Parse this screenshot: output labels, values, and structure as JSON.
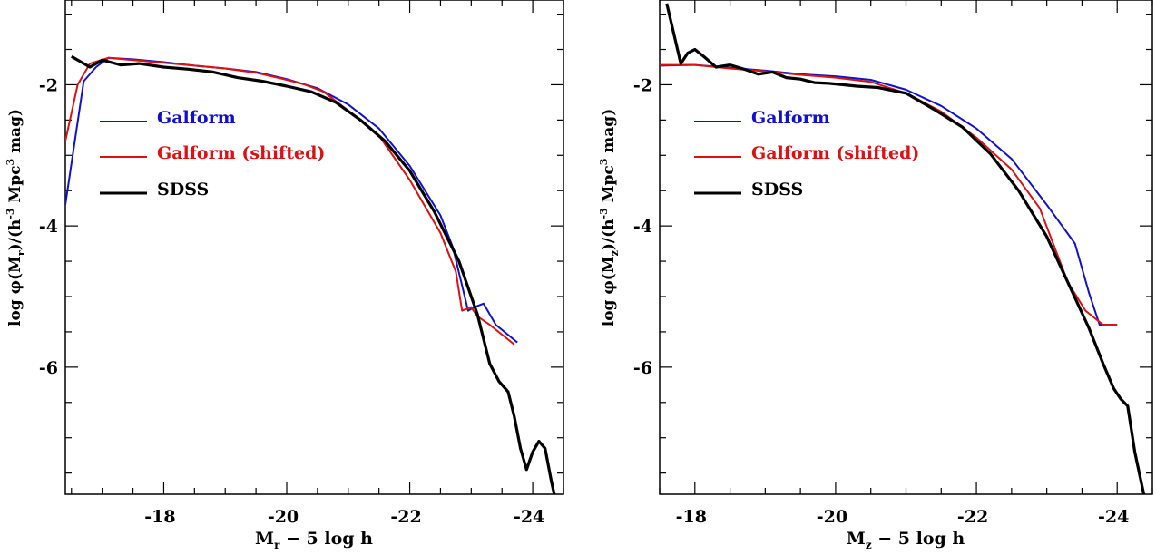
{
  "chart_data": [
    {
      "type": "line",
      "xlabel": "M_r − 5 log h",
      "xlabel_main": "M",
      "xlabel_sub": "r",
      "xlabel_rest": " − 5 log h",
      "ylabel": "log φ(M_r)/(h^-3 Mpc^3 mag)",
      "ylabel_pre": "log φ(M",
      "ylabel_sub": "r",
      "ylabel_mid": ")/(h",
      "ylabel_sup1": "-3",
      "ylabel_mid2": " Mpc",
      "ylabel_sup2": "3",
      "ylabel_post": " mag)",
      "xlim": [
        -16.4,
        -24.5
      ],
      "ylim": [
        -7.8,
        -0.8
      ],
      "xticks": [
        {
          "v": -18,
          "label": "-18"
        },
        {
          "v": -20,
          "label": "-20"
        },
        {
          "v": -22,
          "label": "-22"
        },
        {
          "v": -24,
          "label": "-24"
        }
      ],
      "yticks": [
        {
          "v": -2,
          "label": "-2"
        },
        {
          "v": -4,
          "label": "-4"
        },
        {
          "v": -6,
          "label": "-6"
        }
      ],
      "legend_position": "upper-left",
      "series": [
        {
          "name": "Galform",
          "color": "#1010d0",
          "points": [
            [
              -16.4,
              -3.7
            ],
            [
              -16.7,
              -1.95
            ],
            [
              -16.9,
              -1.75
            ],
            [
              -17.1,
              -1.62
            ],
            [
              -17.5,
              -1.64
            ],
            [
              -18,
              -1.68
            ],
            [
              -18.5,
              -1.73
            ],
            [
              -19,
              -1.77
            ],
            [
              -19.5,
              -1.82
            ],
            [
              -20,
              -1.92
            ],
            [
              -20.5,
              -2.05
            ],
            [
              -21,
              -2.28
            ],
            [
              -21.5,
              -2.62
            ],
            [
              -22,
              -3.15
            ],
            [
              -22.5,
              -3.85
            ],
            [
              -22.7,
              -4.3
            ],
            [
              -22.95,
              -5.2
            ],
            [
              -23.05,
              -5.15
            ],
            [
              -23.2,
              -5.1
            ],
            [
              -23.4,
              -5.4
            ],
            [
              -23.75,
              -5.65
            ]
          ]
        },
        {
          "name": "Galform (shifted)",
          "color": "#e01010",
          "points": [
            [
              -16.4,
              -2.8
            ],
            [
              -16.6,
              -2.0
            ],
            [
              -16.8,
              -1.7
            ],
            [
              -17.1,
              -1.62
            ],
            [
              -17.5,
              -1.65
            ],
            [
              -18,
              -1.69
            ],
            [
              -18.5,
              -1.73
            ],
            [
              -19,
              -1.77
            ],
            [
              -19.5,
              -1.83
            ],
            [
              -20,
              -1.93
            ],
            [
              -20.3,
              -2.0
            ],
            [
              -20.6,
              -2.1
            ],
            [
              -20.9,
              -2.3
            ],
            [
              -21.2,
              -2.5
            ],
            [
              -21.5,
              -2.72
            ],
            [
              -22,
              -3.35
            ],
            [
              -22.5,
              -4.1
            ],
            [
              -22.75,
              -4.65
            ],
            [
              -22.85,
              -5.2
            ],
            [
              -23.0,
              -5.15
            ],
            [
              -23.1,
              -5.28
            ],
            [
              -23.3,
              -5.4
            ],
            [
              -23.7,
              -5.68
            ]
          ]
        },
        {
          "name": "SDSS",
          "color": "#000000",
          "points": [
            [
              -16.5,
              -1.6
            ],
            [
              -16.8,
              -1.75
            ],
            [
              -17.0,
              -1.65
            ],
            [
              -17.3,
              -1.72
            ],
            [
              -17.6,
              -1.7
            ],
            [
              -18,
              -1.75
            ],
            [
              -18.4,
              -1.78
            ],
            [
              -18.8,
              -1.82
            ],
            [
              -19.2,
              -1.9
            ],
            [
              -19.6,
              -1.95
            ],
            [
              -20,
              -2.02
            ],
            [
              -20.4,
              -2.1
            ],
            [
              -20.8,
              -2.25
            ],
            [
              -21.2,
              -2.5
            ],
            [
              -21.6,
              -2.8
            ],
            [
              -22,
              -3.22
            ],
            [
              -22.4,
              -3.8
            ],
            [
              -22.8,
              -4.5
            ],
            [
              -23.1,
              -5.25
            ],
            [
              -23.3,
              -5.95
            ],
            [
              -23.45,
              -6.2
            ],
            [
              -23.6,
              -6.35
            ],
            [
              -23.7,
              -6.7
            ],
            [
              -23.8,
              -7.15
            ],
            [
              -23.9,
              -7.45
            ],
            [
              -24.0,
              -7.2
            ],
            [
              -24.1,
              -7.05
            ],
            [
              -24.2,
              -7.15
            ],
            [
              -24.3,
              -7.6
            ],
            [
              -24.4,
              -8.0
            ]
          ]
        }
      ]
    },
    {
      "type": "line",
      "xlabel": "M_z − 5 log h",
      "xlabel_main": "M",
      "xlabel_sub": "z",
      "xlabel_rest": " − 5 log h",
      "ylabel": "log φ(M_z)/(h^-3 Mpc^3 mag)",
      "ylabel_pre": "log φ(M",
      "ylabel_sub": "z",
      "ylabel_mid": ")/(h",
      "ylabel_sup1": "-3",
      "ylabel_mid2": " Mpc",
      "ylabel_sup2": "3",
      "ylabel_post": " mag)",
      "xlim": [
        -17.5,
        -24.5
      ],
      "ylim": [
        -7.8,
        -0.8
      ],
      "xticks": [
        {
          "v": -18,
          "label": "-18"
        },
        {
          "v": -20,
          "label": "-20"
        },
        {
          "v": -22,
          "label": "-22"
        },
        {
          "v": -24,
          "label": "-24"
        }
      ],
      "yticks": [
        {
          "v": -2,
          "label": "-2"
        },
        {
          "v": -4,
          "label": "-4"
        },
        {
          "v": -6,
          "label": "-6"
        }
      ],
      "legend_position": "upper-left",
      "series": [
        {
          "name": "Galform",
          "color": "#1010d0",
          "points": [
            [
              -17.5,
              -1.73
            ],
            [
              -18,
              -1.72
            ],
            [
              -18.5,
              -1.76
            ],
            [
              -19,
              -1.8
            ],
            [
              -19.5,
              -1.85
            ],
            [
              -20,
              -1.88
            ],
            [
              -20.5,
              -1.93
            ],
            [
              -21,
              -2.07
            ],
            [
              -21.5,
              -2.3
            ],
            [
              -22,
              -2.62
            ],
            [
              -22.5,
              -3.05
            ],
            [
              -23,
              -3.7
            ],
            [
              -23.4,
              -4.25
            ],
            [
              -23.6,
              -4.95
            ],
            [
              -23.75,
              -5.4
            ],
            [
              -24.0,
              -5.4
            ]
          ]
        },
        {
          "name": "Galform (shifted)",
          "color": "#e01010",
          "points": [
            [
              -17.5,
              -1.72
            ],
            [
              -18,
              -1.72
            ],
            [
              -18.5,
              -1.77
            ],
            [
              -19,
              -1.81
            ],
            [
              -19.5,
              -1.86
            ],
            [
              -20,
              -1.9
            ],
            [
              -20.5,
              -1.96
            ],
            [
              -21,
              -2.12
            ],
            [
              -21.5,
              -2.38
            ],
            [
              -22,
              -2.75
            ],
            [
              -22.5,
              -3.2
            ],
            [
              -22.9,
              -3.75
            ],
            [
              -23.3,
              -4.8
            ],
            [
              -23.55,
              -5.2
            ],
            [
              -23.8,
              -5.4
            ],
            [
              -24.0,
              -5.4
            ]
          ]
        },
        {
          "name": "SDSS",
          "color": "#000000",
          "points": [
            [
              -17.6,
              -0.85
            ],
            [
              -17.8,
              -1.7
            ],
            [
              -17.9,
              -1.55
            ],
            [
              -18.0,
              -1.5
            ],
            [
              -18.15,
              -1.62
            ],
            [
              -18.3,
              -1.75
            ],
            [
              -18.5,
              -1.72
            ],
            [
              -18.7,
              -1.78
            ],
            [
              -18.9,
              -1.85
            ],
            [
              -19.1,
              -1.82
            ],
            [
              -19.3,
              -1.9
            ],
            [
              -19.5,
              -1.92
            ],
            [
              -19.7,
              -1.97
            ],
            [
              -19.9,
              -1.98
            ],
            [
              -20.1,
              -2.0
            ],
            [
              -20.3,
              -2.02
            ],
            [
              -20.6,
              -2.04
            ],
            [
              -21.0,
              -2.12
            ],
            [
              -21.4,
              -2.35
            ],
            [
              -21.8,
              -2.6
            ],
            [
              -22.2,
              -2.98
            ],
            [
              -22.6,
              -3.5
            ],
            [
              -23.0,
              -4.15
            ],
            [
              -23.3,
              -4.8
            ],
            [
              -23.6,
              -5.45
            ],
            [
              -23.8,
              -5.95
            ],
            [
              -23.95,
              -6.3
            ],
            [
              -24.05,
              -6.45
            ],
            [
              -24.15,
              -6.55
            ],
            [
              -24.25,
              -7.2
            ],
            [
              -24.4,
              -7.9
            ]
          ]
        }
      ]
    }
  ]
}
